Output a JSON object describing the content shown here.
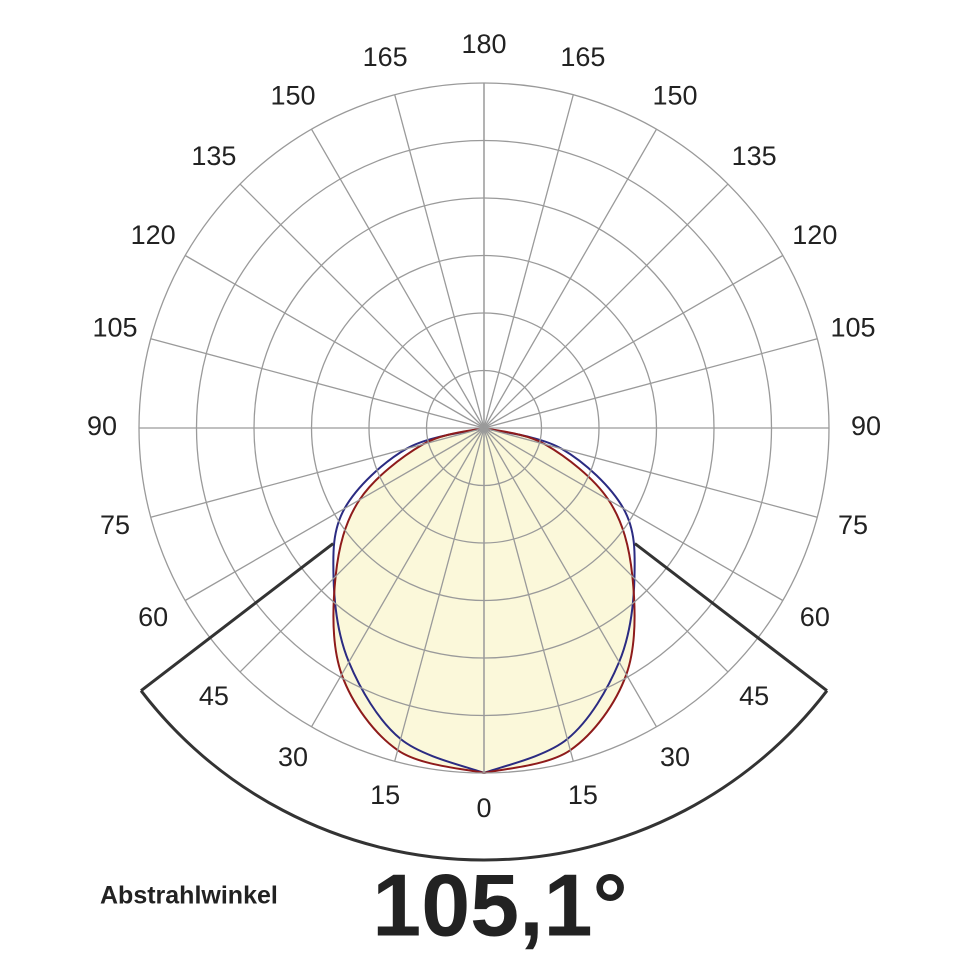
{
  "chart_data": {
    "type": "polar",
    "angles": [
      0,
      15,
      30,
      45,
      60,
      75,
      90,
      105,
      120,
      135,
      150,
      165,
      180
    ],
    "rlim": [
      0,
      6
    ],
    "rticks": [
      1,
      2,
      3,
      4,
      5,
      6
    ],
    "grid": true,
    "fill_color": "#fbf8da",
    "series": [
      {
        "color": "#2b2b82",
        "angles": [
          0,
          15,
          30,
          45,
          60,
          75,
          90
        ],
        "values": [
          6,
          5.6,
          4.7,
          3.7,
          2.8,
          1.4,
          0
        ]
      },
      {
        "color": "#8e1b1b",
        "angles": [
          0,
          15,
          30,
          45,
          60,
          75,
          90
        ],
        "values": [
          6,
          5.8,
          4.95,
          3.65,
          2.5,
          1.1,
          0
        ]
      }
    ],
    "beam_angle": 105.1,
    "beam_angle_label": "105,1°",
    "beam_angle_title": "Abstrahlwinkel"
  }
}
